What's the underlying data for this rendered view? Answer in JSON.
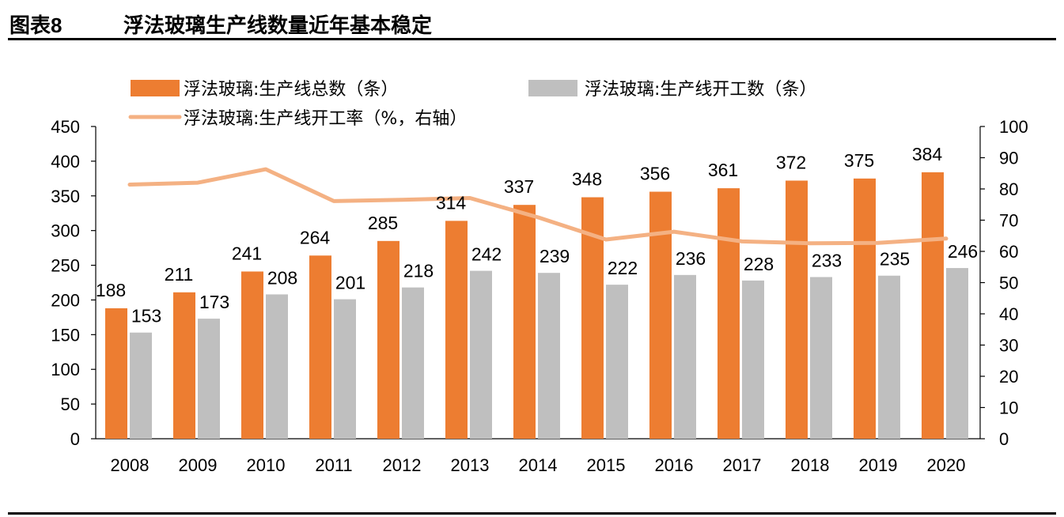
{
  "header": {
    "figure_label": "图表8",
    "title": "浮法玻璃生产线数量近年基本稳定"
  },
  "chart_data": {
    "type": "bar",
    "categories": [
      "2008",
      "2009",
      "2010",
      "2011",
      "2012",
      "2013",
      "2014",
      "2015",
      "2016",
      "2017",
      "2018",
      "2019",
      "2020"
    ],
    "series": [
      {
        "name": "浮法玻璃:生产线总数（条）",
        "type": "bar",
        "axis": "left",
        "color": "#ED7D31",
        "values": [
          188,
          211,
          241,
          264,
          285,
          314,
          337,
          348,
          356,
          361,
          372,
          375,
          384
        ],
        "labels": [
          "188",
          "211",
          "241",
          "264",
          "285",
          "314",
          "337",
          "348",
          "356",
          "361",
          "372",
          "375",
          "384"
        ]
      },
      {
        "name": "浮法玻璃:生产线开工数（条）",
        "type": "bar",
        "axis": "left",
        "color": "#BFBFBF",
        "values": [
          153,
          173,
          208,
          201,
          218,
          242,
          239,
          222,
          236,
          228,
          233,
          235,
          246
        ],
        "labels": [
          "153",
          "173",
          "208",
          "201",
          "218",
          "242",
          "239",
          "222",
          "236",
          "228",
          "233",
          "235",
          "246"
        ]
      },
      {
        "name": "浮法玻璃:生产线开工率（%，右轴）",
        "type": "line",
        "axis": "right",
        "color": "#F4B183",
        "values": [
          81.4,
          82.0,
          86.3,
          76.1,
          76.5,
          77.1,
          70.9,
          63.8,
          66.3,
          63.2,
          62.6,
          62.7,
          64.1
        ]
      }
    ],
    "yaxis_left": {
      "min": 0,
      "max": 450,
      "step": 50,
      "ticks": [
        "0",
        "50",
        "100",
        "150",
        "200",
        "250",
        "300",
        "350",
        "400",
        "450"
      ]
    },
    "yaxis_right": {
      "min": 0,
      "max": 100,
      "step": 10,
      "ticks": [
        "0",
        "10",
        "20",
        "30",
        "40",
        "50",
        "60",
        "70",
        "80",
        "90",
        "100"
      ]
    },
    "grid": false,
    "legend_position": "top-left"
  }
}
